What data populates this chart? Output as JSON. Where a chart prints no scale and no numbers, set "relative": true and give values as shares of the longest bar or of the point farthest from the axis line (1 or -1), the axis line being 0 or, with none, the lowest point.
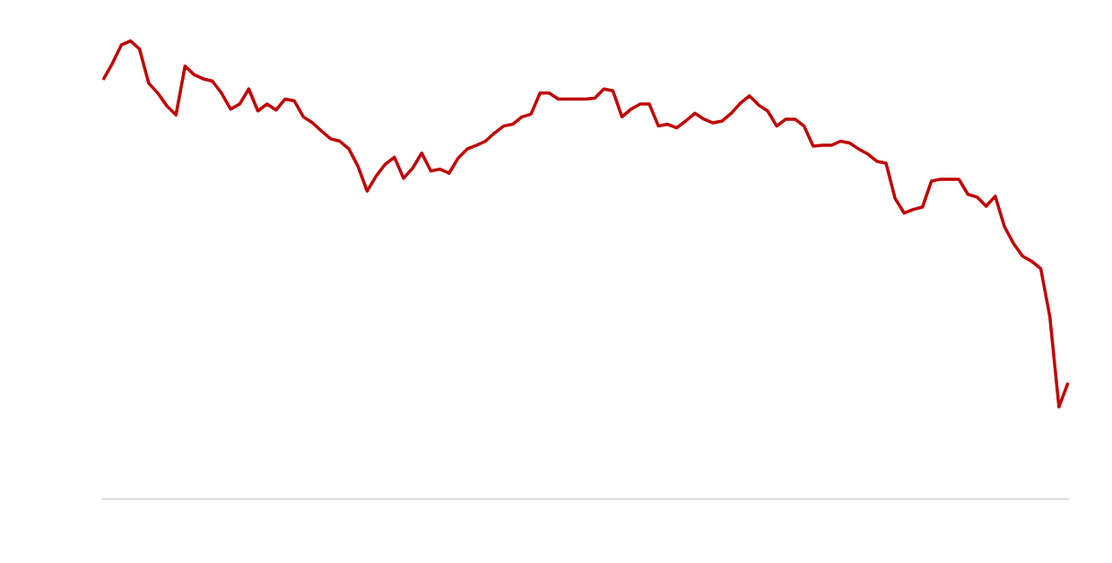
{
  "chart_data": {
    "type": "line",
    "relative": true,
    "grid": false,
    "legend": false,
    "marker": "none",
    "line_style": "solid",
    "categories": [
      null,
      null,
      null,
      null,
      null,
      null,
      null,
      null,
      null,
      null,
      null,
      null,
      null,
      null,
      null,
      null,
      null,
      null,
      null,
      null,
      null,
      null,
      null,
      null,
      null,
      null,
      null,
      null,
      null,
      null,
      null,
      null,
      null,
      null,
      null,
      null,
      null,
      null,
      null,
      null,
      null,
      null,
      null,
      null,
      null,
      null,
      null,
      null,
      null,
      null,
      null,
      null,
      null,
      null,
      null,
      null,
      null,
      null,
      null,
      null,
      null,
      null,
      null,
      null,
      null,
      null,
      null,
      null,
      null,
      null,
      null,
      null,
      null,
      null,
      null,
      null,
      null,
      null,
      null,
      null,
      null,
      null,
      null,
      null,
      null,
      null,
      null,
      null,
      null,
      null,
      null,
      null,
      null,
      null,
      null,
      null,
      null,
      null,
      null,
      null,
      null,
      null,
      null,
      null,
      null,
      null,
      null
    ],
    "series": [
      {
        "color": "#c00000",
        "values": [
          0.915,
          0.95,
          0.991,
          1,
          0.982,
          0.908,
          0.886,
          0.858,
          0.838,
          0.945,
          0.926,
          0.917,
          0.912,
          0.886,
          0.851,
          0.862,
          0.895,
          0.847,
          0.862,
          0.849,
          0.873,
          0.869,
          0.834,
          0.821,
          0.803,
          0.786,
          0.781,
          0.764,
          0.726,
          0.672,
          0.705,
          0.731,
          0.746,
          0.7,
          0.722,
          0.755,
          0.716,
          0.72,
          0.711,
          0.744,
          0.764,
          0.772,
          0.781,
          0.799,
          0.814,
          0.818,
          0.834,
          0.84,
          0.886,
          0.886,
          0.873,
          0.873,
          0.873,
          0.873,
          0.875,
          0.895,
          0.891,
          0.834,
          0.851,
          0.862,
          0.862,
          0.814,
          0.818,
          0.81,
          0.825,
          0.842,
          0.829,
          0.821,
          0.825,
          0.842,
          0.864,
          0.88,
          0.86,
          0.847,
          0.814,
          0.829,
          0.829,
          0.814,
          0.77,
          0.772,
          0.772,
          0.781,
          0.777,
          0.764,
          0.753,
          0.737,
          0.733,
          0.656,
          0.624,
          0.632,
          0.637,
          0.694,
          0.698,
          0.698,
          0.698,
          0.665,
          0.659,
          0.639,
          0.661,
          0.595,
          0.558,
          0.53,
          0.519,
          0.503,
          0.398,
          0.201,
          0.254
        ]
      }
    ]
  }
}
